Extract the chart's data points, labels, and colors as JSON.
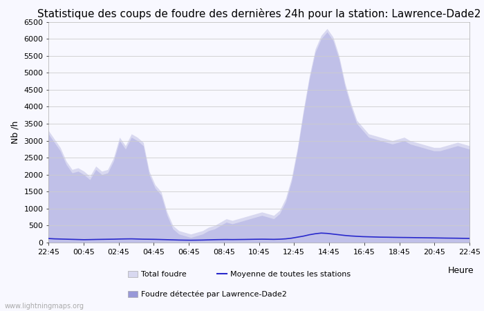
{
  "title": "Statistique des coups de foudre des dernières 24h pour la station: Lawrence-Dade2",
  "ylabel": "Nb /h",
  "xlabel": "Heure",
  "watermark": "www.lightningmaps.org",
  "ylim": [
    0,
    6500
  ],
  "yticks": [
    0,
    500,
    1000,
    1500,
    2000,
    2500,
    3000,
    3500,
    4000,
    4500,
    5000,
    5500,
    6000,
    6500
  ],
  "xtick_labels": [
    "22:45",
    "00:45",
    "02:45",
    "04:45",
    "06:45",
    "08:45",
    "10:45",
    "12:45",
    "14:45",
    "16:45",
    "18:45",
    "20:45",
    "22:45"
  ],
  "total_foudre": [
    3300,
    3050,
    2800,
    2400,
    2150,
    2200,
    2100,
    1950,
    2250,
    2100,
    2150,
    2500,
    3100,
    2850,
    3200,
    3100,
    2950,
    2100,
    1700,
    1500,
    900,
    500,
    350,
    300,
    250,
    300,
    350,
    450,
    500,
    600,
    700,
    650,
    700,
    750,
    800,
    850,
    900,
    850,
    800,
    950,
    1300,
    1900,
    2800,
    3900,
    4900,
    5700,
    6100,
    6300,
    6050,
    5500,
    4700,
    4100,
    3600,
    3400,
    3200,
    3150,
    3100,
    3050,
    3000,
    3050,
    3100,
    3000,
    2950,
    2900,
    2850,
    2800,
    2800,
    2850,
    2900,
    2950,
    2900,
    2850
  ],
  "station_foudre": [
    3200,
    2950,
    2700,
    2300,
    2050,
    2100,
    2000,
    1850,
    2150,
    2000,
    2050,
    2400,
    3000,
    2750,
    3100,
    3000,
    2850,
    2000,
    1600,
    1400,
    800,
    400,
    250,
    200,
    150,
    200,
    250,
    350,
    400,
    500,
    600,
    550,
    600,
    650,
    700,
    750,
    800,
    750,
    700,
    850,
    1200,
    1800,
    2700,
    3800,
    4800,
    5600,
    6000,
    6200,
    5950,
    5400,
    4600,
    4000,
    3500,
    3300,
    3100,
    3050,
    3000,
    2950,
    2900,
    2950,
    3000,
    2900,
    2850,
    2800,
    2750,
    2700,
    2700,
    2750,
    2800,
    2850,
    2800,
    2750
  ],
  "moyenne": [
    120,
    110,
    105,
    100,
    95,
    90,
    85,
    88,
    92,
    95,
    98,
    100,
    105,
    108,
    110,
    105,
    100,
    98,
    95,
    90,
    85,
    80,
    75,
    72,
    70,
    72,
    75,
    80,
    85,
    88,
    90,
    88,
    90,
    92,
    95,
    98,
    100,
    98,
    95,
    100,
    110,
    130,
    160,
    190,
    230,
    260,
    280,
    270,
    250,
    230,
    210,
    195,
    185,
    175,
    170,
    165,
    160,
    158,
    155,
    152,
    150,
    148,
    145,
    143,
    140,
    138,
    135,
    132,
    130,
    128,
    125,
    122
  ],
  "color_total": "#d8d8f0",
  "color_station": "#c0c0e8",
  "color_moyenne": "#2828cc",
  "background_color": "#f8f8ff",
  "grid_color": "#cccccc",
  "title_fontsize": 11,
  "axis_fontsize": 9,
  "tick_fontsize": 8,
  "legend_patch_total": "#d8d8f0",
  "legend_patch_station": "#9898d8",
  "fig_width": 7.0,
  "fig_height": 4.5,
  "fig_dpi": 100
}
